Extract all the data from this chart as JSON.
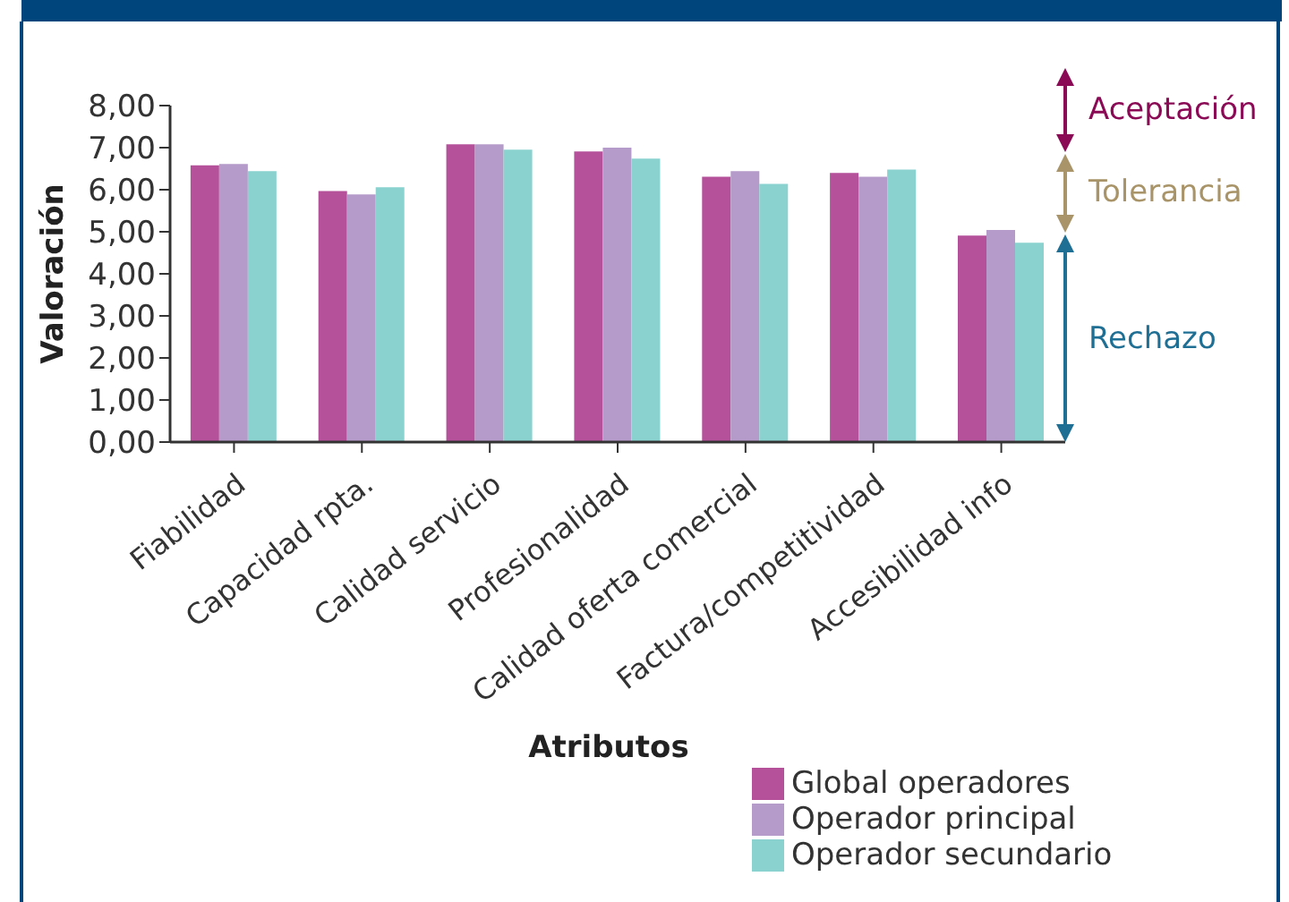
{
  "chart_data": {
    "type": "bar",
    "xlabel": "Atributos",
    "ylabel": "Valoración",
    "categories": [
      "Fiabilidad",
      "Capacidad rpta.",
      "Calidad servicio",
      "Profesionalidad",
      "Calidad oferta comercial",
      "Factura/competitividad",
      "Accesibilidad info"
    ],
    "series": [
      {
        "name": "Global operadores",
        "color": "#b5509a",
        "values": [
          6.58,
          5.97,
          7.08,
          6.91,
          6.31,
          6.4,
          4.91
        ]
      },
      {
        "name": "Operador principal",
        "color": "#b59bc9",
        "values": [
          6.61,
          5.89,
          7.08,
          7.0,
          6.44,
          6.31,
          5.04
        ]
      },
      {
        "name": "Operador secundario",
        "color": "#8ad2cf",
        "values": [
          6.44,
          6.06,
          6.95,
          6.74,
          6.14,
          6.48,
          4.74
        ]
      }
    ],
    "ylim": [
      0,
      8
    ],
    "yticks": [
      {
        "value": 0,
        "label": "0,00"
      },
      {
        "value": 1,
        "label": "1,00"
      },
      {
        "value": 2,
        "label": "2,00"
      },
      {
        "value": 3,
        "label": "3,00"
      },
      {
        "value": 4,
        "label": "4,00"
      },
      {
        "value": 5,
        "label": "5,00"
      },
      {
        "value": 6,
        "label": "6,00"
      },
      {
        "value": 7,
        "label": "7,00"
      },
      {
        "value": 8,
        "label": "8,00"
      }
    ],
    "annotations": [
      "Aceptación",
      "Tolerancia",
      "Rechazo"
    ],
    "grid": false,
    "legend": "bottom right"
  }
}
